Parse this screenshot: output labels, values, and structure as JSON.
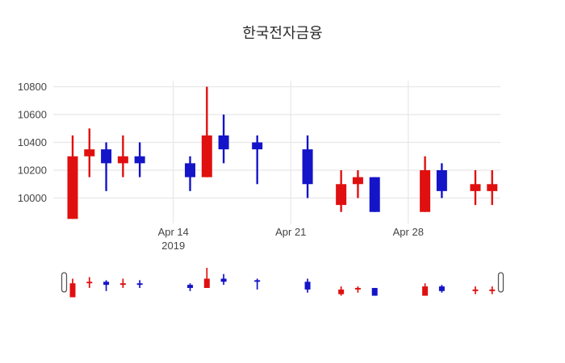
{
  "title": "한국전자금융",
  "colors": {
    "up": "#e01010",
    "down": "#1414c8",
    "grid": "#e7e7e7",
    "tick_text": "#444444",
    "background": "#ffffff",
    "slider_handle_fill": "#ffffff",
    "slider_handle_border": "#555555"
  },
  "chart_data": {
    "type": "candlestick",
    "title": "한국전자금융",
    "xlabel": "",
    "ylabel": "",
    "grid": true,
    "ylim": [
      9820,
      10840
    ],
    "y_ticks": [
      10800,
      10600,
      10400,
      10200,
      10000
    ],
    "x_ticks": [
      {
        "date": "2019-04-14",
        "label": "Apr 14",
        "sublabel": "2019"
      },
      {
        "date": "2019-04-21",
        "label": "Apr 21",
        "sublabel": ""
      },
      {
        "date": "2019-04-28",
        "label": "Apr 28",
        "sublabel": ""
      }
    ],
    "candles": [
      {
        "date": "2019-04-08",
        "open": 9850,
        "high": 10450,
        "low": 9850,
        "close": 10300
      },
      {
        "date": "2019-04-09",
        "open": 10300,
        "high": 10500,
        "low": 10150,
        "close": 10350
      },
      {
        "date": "2019-04-10",
        "open": 10350,
        "high": 10400,
        "low": 10050,
        "close": 10250
      },
      {
        "date": "2019-04-11",
        "open": 10250,
        "high": 10450,
        "low": 10150,
        "close": 10300
      },
      {
        "date": "2019-04-12",
        "open": 10300,
        "high": 10400,
        "low": 10150,
        "close": 10250
      },
      {
        "date": "2019-04-15",
        "open": 10250,
        "high": 10300,
        "low": 10050,
        "close": 10150
      },
      {
        "date": "2019-04-16",
        "open": 10150,
        "high": 10800,
        "low": 10150,
        "close": 10450
      },
      {
        "date": "2019-04-17",
        "open": 10450,
        "high": 10600,
        "low": 10250,
        "close": 10350
      },
      {
        "date": "2019-04-19",
        "open": 10400,
        "high": 10450,
        "low": 10100,
        "close": 10350
      },
      {
        "date": "2019-04-22",
        "open": 10350,
        "high": 10450,
        "low": 10000,
        "close": 10100
      },
      {
        "date": "2019-04-24",
        "open": 9950,
        "high": 10200,
        "low": 9900,
        "close": 10100
      },
      {
        "date": "2019-04-25",
        "open": 10100,
        "high": 10200,
        "low": 10000,
        "close": 10150
      },
      {
        "date": "2019-04-26",
        "open": 10150,
        "high": 10150,
        "low": 9900,
        "close": 9900
      },
      {
        "date": "2019-04-29",
        "open": 9900,
        "high": 10300,
        "low": 9900,
        "close": 10200
      },
      {
        "date": "2019-04-30",
        "open": 10200,
        "high": 10250,
        "low": 10000,
        "close": 10050
      },
      {
        "date": "2019-05-02",
        "open": 10050,
        "high": 10200,
        "low": 9950,
        "close": 10100
      },
      {
        "date": "2019-05-03",
        "open": 10050,
        "high": 10200,
        "low": 9950,
        "close": 10100
      }
    ],
    "legend": null,
    "rangeslider": {
      "visible": true
    }
  }
}
